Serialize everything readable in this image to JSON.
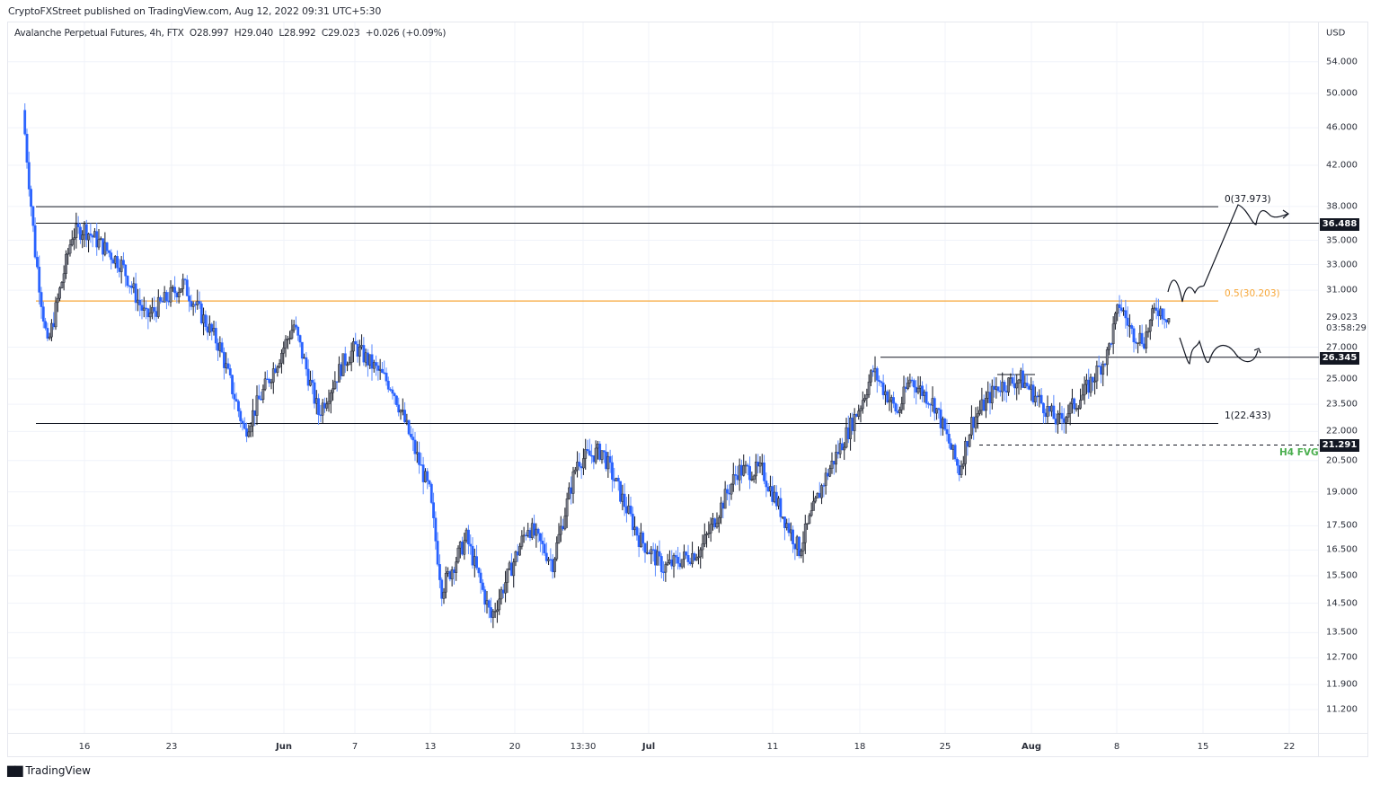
{
  "header": {
    "publisher": "CryptoFXStreet published on TradingView.com, Aug 12, 2022 09:31 UTC+5:30"
  },
  "legend": {
    "symbol": "Avalanche Perpetual Futures, 4h, FTX",
    "open": "O28.997",
    "high": "H29.040",
    "low": "L28.992",
    "close": "C29.023",
    "change": "+0.026 (+0.09%)"
  },
  "price_scale": {
    "currency": "USD",
    "ticks": [
      "54.000",
      "50.000",
      "46.000",
      "42.000",
      "38.000",
      "35.000",
      "33.000",
      "31.000",
      "27.000",
      "25.000",
      "23.500",
      "22.000",
      "20.500",
      "19.000",
      "17.500",
      "16.500",
      "15.500",
      "14.500",
      "13.500",
      "12.700",
      "11.900",
      "11.200"
    ],
    "current_price": "29.023",
    "countdown": "03:58:29",
    "tags": [
      {
        "value": "36.488",
        "color": "#131722"
      },
      {
        "value": "26.345",
        "color": "#131722"
      },
      {
        "value": "21.291",
        "color": "#131722"
      }
    ]
  },
  "time_axis": {
    "ticks": [
      {
        "label": "16",
        "bold": false
      },
      {
        "label": "23",
        "bold": false
      },
      {
        "label": "Jun",
        "bold": true
      },
      {
        "label": "7",
        "bold": false
      },
      {
        "label": "13",
        "bold": false
      },
      {
        "label": "20",
        "bold": false
      },
      {
        "label": "13:30",
        "bold": false
      },
      {
        "label": "Jul",
        "bold": true
      },
      {
        "label": "11",
        "bold": false
      },
      {
        "label": "18",
        "bold": false
      },
      {
        "label": "25",
        "bold": false
      },
      {
        "label": "Aug",
        "bold": true
      },
      {
        "label": "8",
        "bold": false
      },
      {
        "label": "15",
        "bold": false
      },
      {
        "label": "22",
        "bold": false
      }
    ]
  },
  "annotations": {
    "fib_0": "0(37.973)",
    "fib_05": "0.5(30.203)",
    "fib_1": "1(22.433)",
    "fvg": "H4 FVG"
  },
  "colors": {
    "up": "#787b86",
    "down": "#2962ff",
    "fib_mid": "#f7a738",
    "fvg": "#4caf50",
    "line": "#131722",
    "grid": "#f0f3fa"
  },
  "footer": {
    "brand": "TradingView"
  },
  "chart_data": {
    "type": "candlestick",
    "title": "Avalanche Perpetual Futures, 4h, FTX",
    "xlabel": "",
    "ylabel": "USD",
    "scale": "log",
    "ylim": [
      10.8,
      58
    ],
    "x_ticks": [
      "16",
      "23",
      "Jun",
      "7",
      "13",
      "20",
      "13:30",
      "Jul",
      "11",
      "18",
      "25",
      "Aug",
      "8",
      "15",
      "22"
    ],
    "y_ticks": [
      54,
      50,
      46,
      42,
      38,
      35,
      33,
      31,
      27,
      25,
      23.5,
      22,
      20.5,
      19,
      17.5,
      16.5,
      15.5,
      14.5,
      13.5,
      12.7,
      11.9,
      11.2
    ],
    "ohlc_last": {
      "open": 28.997,
      "high": 29.04,
      "low": 28.992,
      "close": 29.023,
      "change": 0.026,
      "change_pct": 0.09
    },
    "approx_close_path": [
      {
        "date": "May 11",
        "close": 48.0
      },
      {
        "date": "May 12",
        "close": 34.0
      },
      {
        "date": "May 13",
        "close": 27.0
      },
      {
        "date": "May 15",
        "close": 35.5
      },
      {
        "date": "May 16",
        "close": 36.0
      },
      {
        "date": "May 19",
        "close": 33.0
      },
      {
        "date": "May 21",
        "close": 29.0
      },
      {
        "date": "May 24",
        "close": 31.5
      },
      {
        "date": "May 27",
        "close": 27.0
      },
      {
        "date": "May 29",
        "close": 22.0
      },
      {
        "date": "Jun 2",
        "close": 28.5
      },
      {
        "date": "Jun 4",
        "close": 23.0
      },
      {
        "date": "Jun 6",
        "close": 26.0
      },
      {
        "date": "Jun 7",
        "close": 27.0
      },
      {
        "date": "Jun 10",
        "close": 24.5
      },
      {
        "date": "Jun 13",
        "close": 19.0
      },
      {
        "date": "Jun 14",
        "close": 15.0
      },
      {
        "date": "Jun 16",
        "close": 17.0
      },
      {
        "date": "Jun 18",
        "close": 14.0
      },
      {
        "date": "Jun 21",
        "close": 17.5
      },
      {
        "date": "Jun 23",
        "close": 16.0
      },
      {
        "date": "Jun 25",
        "close": 20.5
      },
      {
        "date": "Jun 27",
        "close": 21.0
      },
      {
        "date": "Jun 30",
        "close": 17.0
      },
      {
        "date": "Jul 2",
        "close": 15.8
      },
      {
        "date": "Jul 5",
        "close": 16.5
      },
      {
        "date": "Jul 8",
        "close": 20.0
      },
      {
        "date": "Jul 10",
        "close": 20.0
      },
      {
        "date": "Jul 13",
        "close": 16.5
      },
      {
        "date": "Jul 15",
        "close": 19.5
      },
      {
        "date": "Jul 18",
        "close": 23.5
      },
      {
        "date": "Jul 19",
        "close": 25.5
      },
      {
        "date": "Jul 21",
        "close": 23.0
      },
      {
        "date": "Jul 22",
        "close": 25.0
      },
      {
        "date": "Jul 24",
        "close": 23.5
      },
      {
        "date": "Jul 26",
        "close": 20.0
      },
      {
        "date": "Jul 27",
        "close": 22.5
      },
      {
        "date": "Jul 29",
        "close": 24.5
      },
      {
        "date": "Jul 31",
        "close": 25.0
      },
      {
        "date": "Aug 3",
        "close": 22.5
      },
      {
        "date": "Aug 5",
        "close": 24.0
      },
      {
        "date": "Aug 7",
        "close": 26.5
      },
      {
        "date": "Aug 8",
        "close": 30.0
      },
      {
        "date": "Aug 9",
        "close": 28.0
      },
      {
        "date": "Aug 10",
        "close": 27.5
      },
      {
        "date": "Aug 11",
        "close": 29.8
      },
      {
        "date": "Aug 12",
        "close": 29.023
      }
    ],
    "horizontal_levels": [
      {
        "value": 37.973,
        "label": "0(37.973)",
        "style": "solid",
        "color": "#131722"
      },
      {
        "value": 36.488,
        "label": "36.488",
        "style": "solid",
        "color": "#131722"
      },
      {
        "value": 30.203,
        "label": "0.5(30.203)",
        "style": "solid",
        "color": "#f7a738"
      },
      {
        "value": 26.345,
        "label": "26.345",
        "style": "solid",
        "color": "#131722"
      },
      {
        "value": 22.433,
        "label": "1(22.433)",
        "style": "solid",
        "color": "#131722"
      },
      {
        "value": 21.291,
        "label": "H4 FVG",
        "style": "dashed",
        "color": "#4caf50"
      }
    ],
    "projections": [
      {
        "name": "bullish",
        "path": "dip to 30.2 then rally to ~38 and consolidate above 36.49"
      },
      {
        "name": "bearish",
        "path": "drop to ~26.3 and range around 26.345"
      }
    ],
    "grid": true,
    "legend_position": "top-left"
  }
}
